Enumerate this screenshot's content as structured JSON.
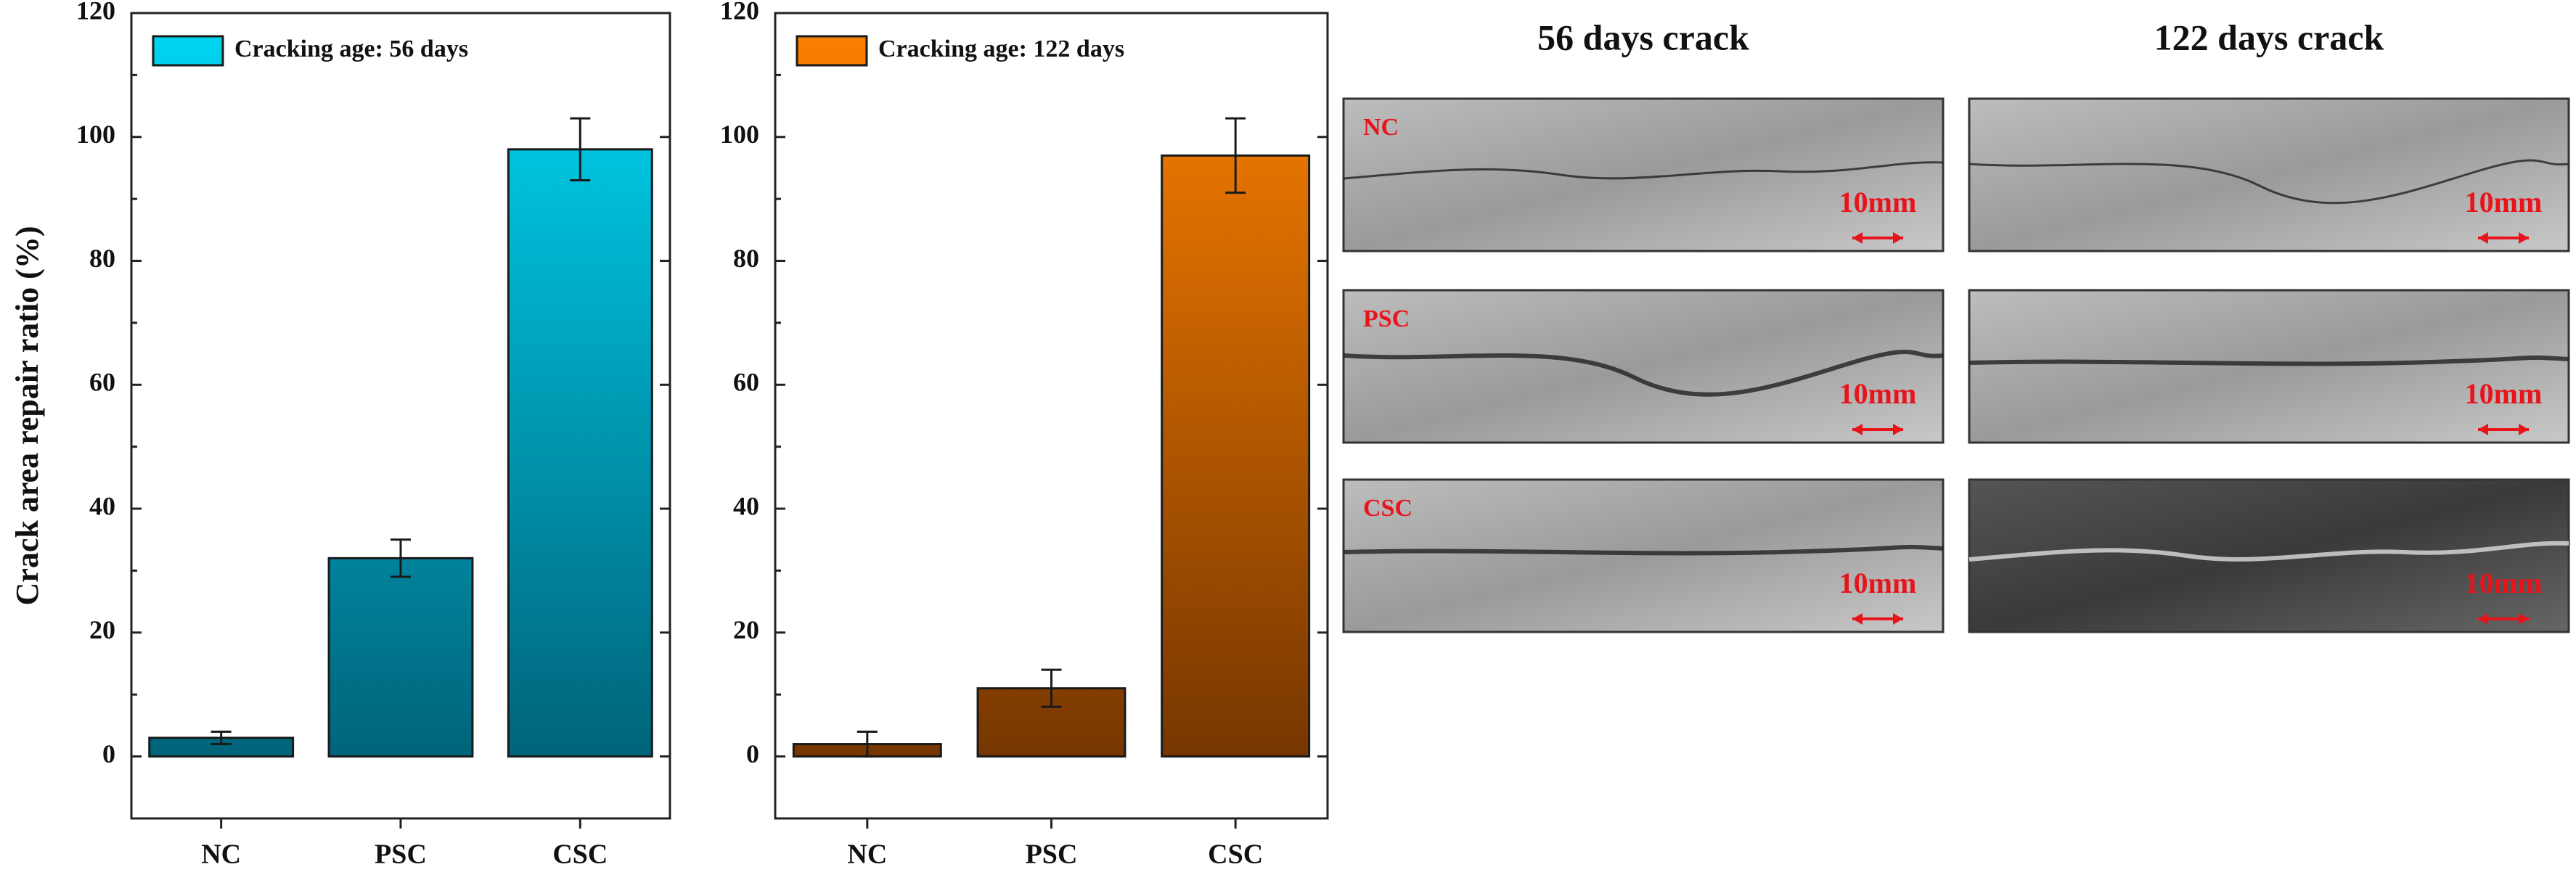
{
  "chart_data": [
    {
      "type": "bar",
      "ylabel": "Crack area repair ratio (%)",
      "categories": [
        "NC",
        "PSC",
        "CSC"
      ],
      "series": [
        {
          "name": "Cracking age: 56 days",
          "colors": [
            "#00d8f5",
            "#005a70"
          ],
          "values": [
            3,
            32,
            98
          ],
          "errors": [
            1,
            3,
            5
          ]
        }
      ],
      "ylim": [
        -10,
        120
      ],
      "yticks": [
        0,
        20,
        40,
        60,
        80,
        100,
        120
      ],
      "legend": "upper left"
    },
    {
      "type": "bar",
      "categories": [
        "NC",
        "PSC",
        "CSC"
      ],
      "series": [
        {
          "name": "Cracking age: 122 days",
          "colors": [
            "#ff8200",
            "#6b3000"
          ],
          "values": [
            2,
            11,
            97
          ],
          "errors": [
            2,
            3,
            6
          ]
        }
      ],
      "ylim": [
        -10,
        120
      ],
      "yticks": [
        0,
        20,
        40,
        60,
        80,
        100,
        120
      ],
      "legend": "upper left"
    }
  ],
  "images": {
    "columns": [
      "56 days crack",
      "122 days crack"
    ],
    "rows": [
      "NC",
      "PSC",
      "CSC"
    ],
    "scale_label": "10mm"
  }
}
